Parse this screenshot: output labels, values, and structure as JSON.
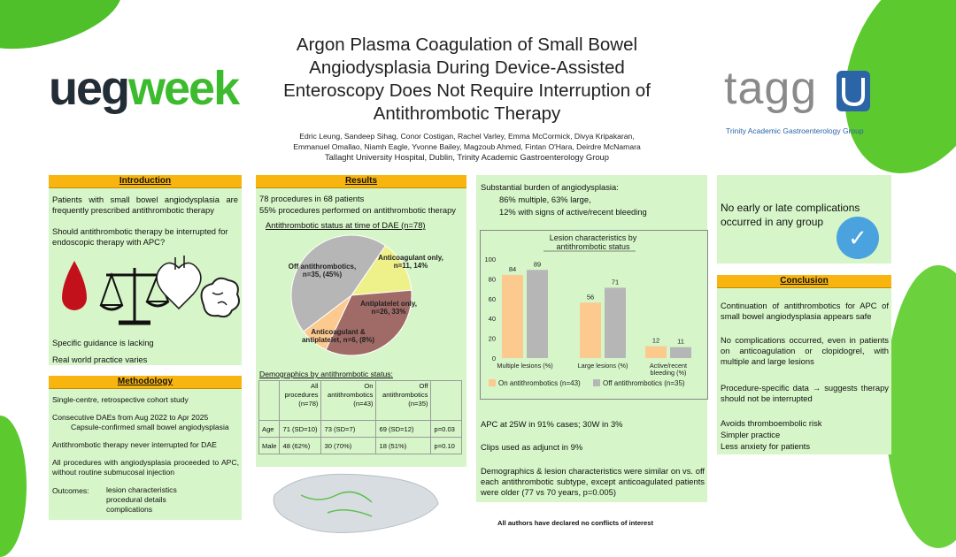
{
  "colors": {
    "panel": "#d6f5c8",
    "header": "#f8b50f",
    "on_series": "#fcc98f",
    "off_series": "#b6b6b6",
    "checkmark": "#4aa3df"
  },
  "logos": {
    "ueg_part1": "ueg",
    "ueg_part2": "week",
    "tagg_text": "tagg",
    "tagg_subtitle": "Trinity Academic Gastroenterology Group"
  },
  "title": "Argon Plasma Coagulation of Small Bowel Angiodysplasia During Device-Assisted Enteroscopy Does Not Require Interruption of Antithrombotic Therapy",
  "authors": {
    "line1": "Edric Leung, Sandeep Sihag, Conor Costigan, Rachel Varley, Emma McCormick, Divya Kripakaran,",
    "line2": "Emmanuel Omallao, Niamh Eagle, Yvonne Bailey, Magzoub Ahmed, Fintan O'Hara, Deirdre McNamara",
    "affiliation": "Tallaght University Hospital, Dublin, Trinity Academic Gastroenterology Group"
  },
  "introduction": {
    "heading": "Introduction",
    "p1": "Patients with small bowel angiodysplasia are frequently prescribed antithrombotic therapy",
    "p2": "Should antithrombotic therapy be interrupted for endoscopic therapy with APC?",
    "p3": "Specific guidance is lacking",
    "p4": "Real world practice varies",
    "icons": [
      "blood-drop-icon",
      "scales-icon",
      "heart-icon",
      "brain-icon"
    ]
  },
  "methodology": {
    "heading": "Methodology",
    "p1": "Single-centre, retrospective cohort study",
    "p2a": "Consecutive DAEs from Aug 2022 to Apr 2025",
    "p2b": "Capsule-confirmed small bowel angiodysplasia",
    "p3": "Antithrombotic therapy never interrupted for DAE",
    "p4": "All procedures with angiodysplasia proceeded to APC, without routine submucosal injection",
    "outcomes_label": "Outcomes:",
    "outcomes": [
      "lesion characteristics",
      "procedural details",
      "complications"
    ]
  },
  "results": {
    "heading": "Results",
    "line1": "78 procedures in 68 patients",
    "line2": "55% procedures performed on antithrombotic therapy",
    "pie_title": "Antithrombotic status at time of DAE (n=78)",
    "demo_title": "Demographics by antithrombotic status:",
    "table": {
      "headers": [
        "",
        "All procedures (n=78)",
        "On antithrombotics (n=43)",
        "Off antithrombotics (n=35)",
        ""
      ],
      "rows": [
        [
          "Age",
          "71 (SD=10)",
          "73 (SD=7)",
          "69 (SD=12)",
          "p=0.03"
        ],
        [
          "Male",
          "48 (62%)",
          "30 (70%)",
          "18 (51%)",
          "p=0.10"
        ]
      ]
    }
  },
  "lesions": {
    "intro": "Substantial burden of angiodysplasia:",
    "b1": "86% multiple, 63% large,",
    "b2": "12% with signs of active/recent bleeding",
    "apc": "APC at 25W in 91% cases; 30W in 3%",
    "clips": "Clips used as adjunct in 9%",
    "demographics": "Demographics & lesion characteristics were similar on vs. off each antithrombotic subtype, except anticoagulated patients were older (77 vs 70 years, p=0.005)"
  },
  "complications": {
    "text": "No early or late complications occurred in any group",
    "check": "✓"
  },
  "conclusion": {
    "heading": "Conclusion",
    "p1": "Continuation of antithrombotics for APC of small bowel angiodysplasia appears safe",
    "p2": "No complications occurred, even in patients on anticoagulation or clopidogrel, with multiple and large lesions",
    "p3": "Procedure-specific data → suggests therapy should not be interrupted",
    "p4a": "Avoids thromboembolic risk",
    "p4b": "Simpler practice",
    "p4c": "Less anxiety for patients"
  },
  "footer": "All authors have declared no conflicts of interest",
  "chart_data": [
    {
      "type": "pie",
      "title": "Antithrombotic status at time of DAE (n=78)",
      "slices": [
        {
          "label": "Off antithrombotics, n=35, (45%)",
          "value": 35,
          "color": "#b6b6b6"
        },
        {
          "label": "Anticoagulant only, n=11, 14%",
          "value": 11,
          "color": "#eef08a"
        },
        {
          "label": "Antiplatelet only, n=26, 33%",
          "value": 26,
          "color": "#a06a66"
        },
        {
          "label": "Anticoagulant & antiplatelet, n=6, (8%)",
          "value": 6,
          "color": "#fcc98f"
        }
      ]
    },
    {
      "type": "bar",
      "title": "Lesion characteristics by antithrombotic status",
      "categories": [
        "Multiple lesions (%)",
        "Large lesions (%)",
        "Active/recent bleeding (%)"
      ],
      "series": [
        {
          "name": "On antithrombotics (n=43)",
          "values": [
            84,
            56,
            12
          ],
          "color": "#fcc98f"
        },
        {
          "name": "Off antithrombotics (n=35)",
          "values": [
            89,
            71,
            11
          ],
          "color": "#b6b6b6"
        }
      ],
      "ylim": [
        0,
        100
      ],
      "yticks": [
        0,
        20,
        40,
        60,
        80,
        100
      ],
      "legend": "bottom"
    }
  ]
}
